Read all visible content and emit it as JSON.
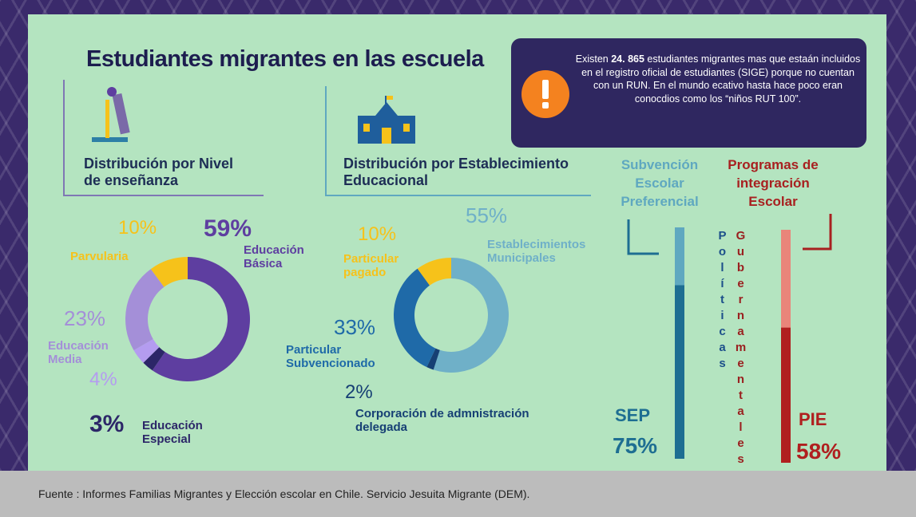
{
  "title": "Estudiantes migrantes en las escuela",
  "notice": {
    "before": "Existen",
    "number": "24. 865",
    "after": "estudiantes migrantes mas que estaán incluidos en el registro oficial de estudiantes (SIGE) porque no cuentan con un RUN. En el mundo ecativo hasta hace poco eran conocdios como los “niños RUT 100”."
  },
  "chart_data": [
    {
      "type": "pie",
      "title": "Distribución por Nivel de enseñanza",
      "categories": [
        "Parvularia",
        "Educación Básica",
        "Educación Especial",
        null,
        "Educación Media"
      ],
      "values": [
        10,
        59,
        3,
        4,
        23
      ],
      "value_labels": [
        "10%",
        "59%",
        "3%",
        "4%",
        "23%"
      ],
      "colors": [
        "#f6c21a",
        "#5e3ea0",
        "#2c2668",
        "#b49cf0",
        "#a48fd8"
      ]
    },
    {
      "type": "pie",
      "title": "Distribución por Establecimiento Educacional",
      "categories": [
        "Particular pagado",
        "Establecimientos Municipales",
        "Corporación de admnistración delegada",
        "Particular Subvencionado"
      ],
      "values": [
        10,
        55,
        2,
        33
      ],
      "value_labels": [
        "10%",
        "55%",
        "2%",
        "33%"
      ],
      "colors": [
        "#f6c21a",
        "#6fb0c8",
        "#163f74",
        "#1f6aa8"
      ]
    },
    {
      "type": "bar",
      "headers": [
        "Subvención Escolar Preferencial",
        "Programas de integración Escolar"
      ],
      "categories": [
        "SEP",
        "PIE"
      ],
      "values": [
        75,
        58
      ],
      "value_labels": [
        "75%",
        "58%"
      ],
      "ylim": [
        0,
        100
      ],
      "colors": [
        "#1e6e92",
        "#b01f1f"
      ],
      "track_colors": [
        "#5fa8c0",
        "#e9857a"
      ]
    }
  ],
  "annotation": [
    "Políticas",
    "Gubernamentales"
  ],
  "footer": "Fuente :  Informes Familias Migrantes y Elección escolar en Chile. Servicio Jesuita Migrante (DEM)."
}
